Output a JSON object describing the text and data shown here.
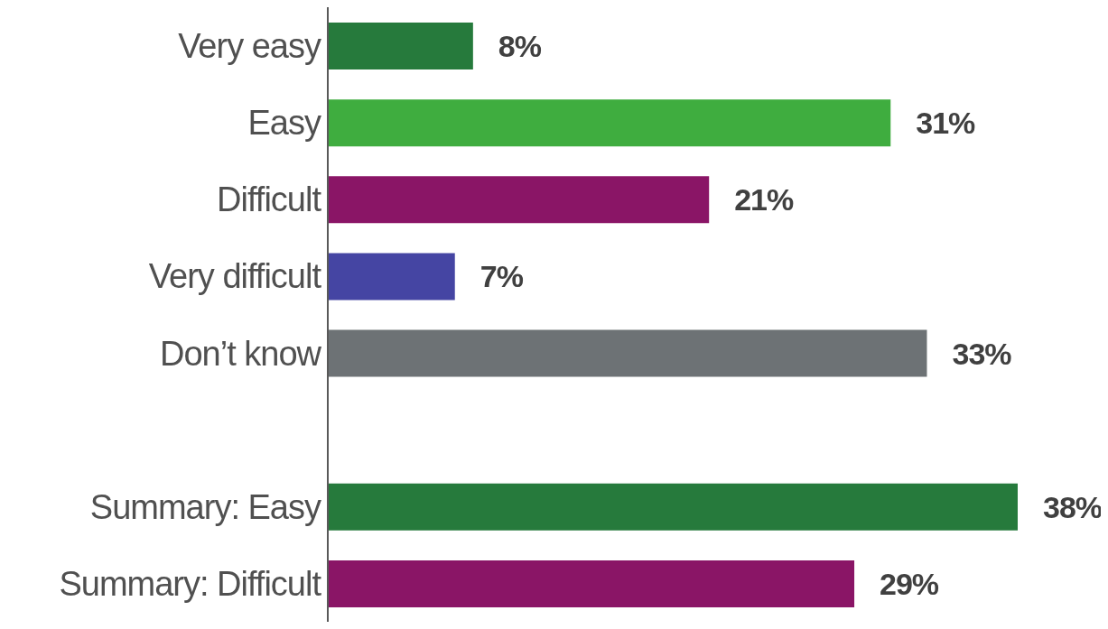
{
  "chart_data": {
    "type": "bar",
    "orientation": "horizontal",
    "categories": [
      "Very easy",
      "Easy",
      "Difficult",
      "Very difficult",
      "Don’t know",
      null,
      "Summary: Easy",
      "Summary: Difficult"
    ],
    "values": [
      8,
      31,
      21,
      7,
      33,
      null,
      38,
      29
    ],
    "colors": [
      "#267a3c",
      "#3fad3f",
      "#8a1566",
      "#4545a3",
      "#6d7275",
      null,
      "#267a3c",
      "#8a1566"
    ],
    "value_labels": [
      "8%",
      "31%",
      "21%",
      "7%",
      "33%",
      null,
      "38%",
      "29%"
    ]
  }
}
